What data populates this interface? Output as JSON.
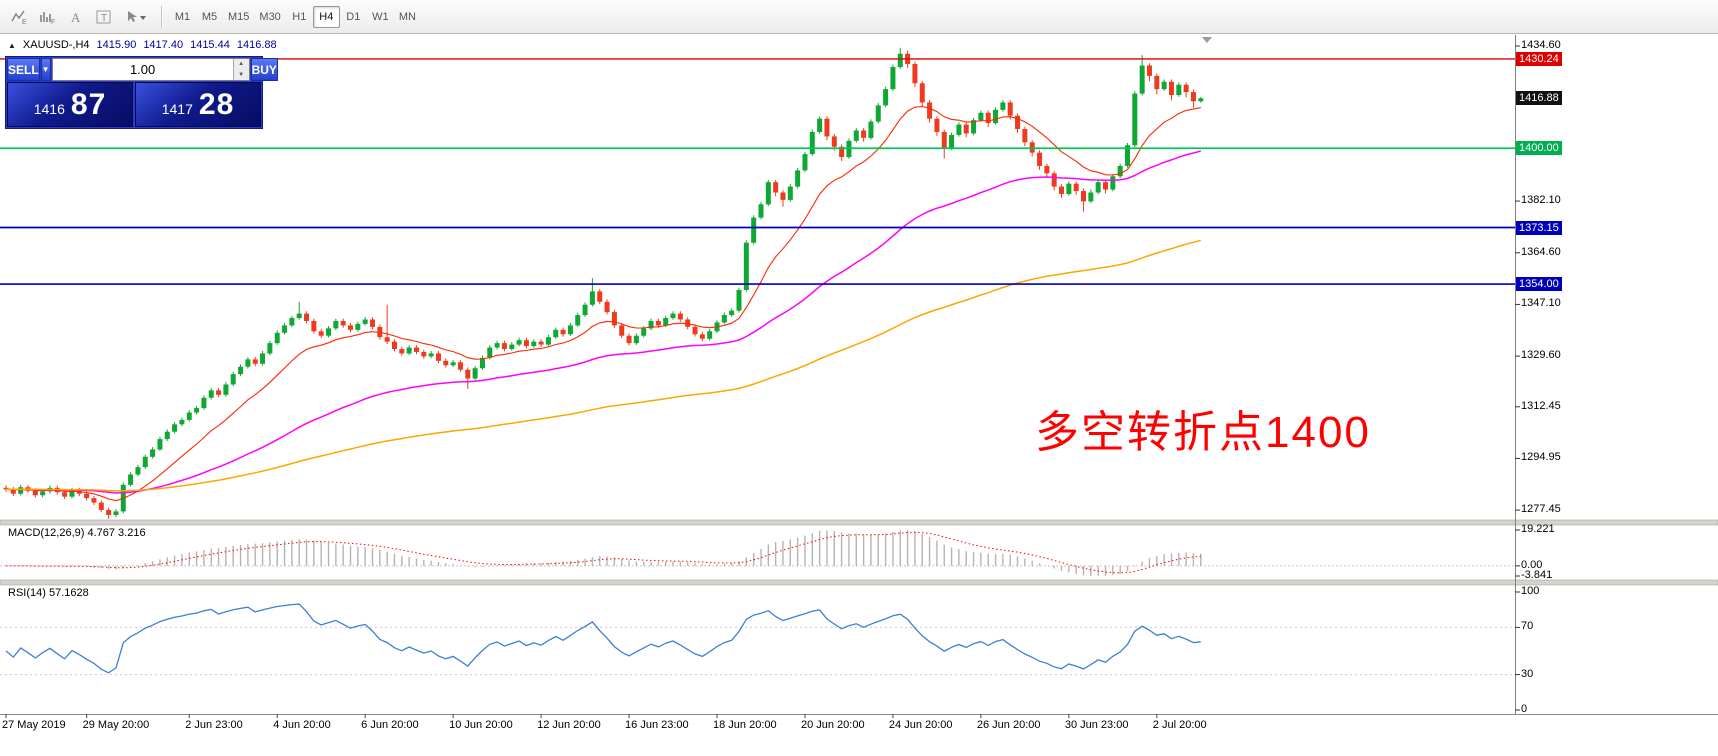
{
  "toolbar": {
    "timeframes": [
      "M1",
      "M5",
      "M15",
      "M30",
      "H1",
      "H4",
      "D1",
      "W1",
      "MN"
    ],
    "active_timeframe": "H4"
  },
  "chart_header": {
    "symbol": "XAUUSD-,H4",
    "open": "1415.90",
    "high": "1417.40",
    "low": "1415.44",
    "close": "1416.88"
  },
  "trade_panel": {
    "sell_label": "SELL",
    "buy_label": "BUY",
    "volume": "1.00",
    "sell_price_small": "1416",
    "sell_price_big": "87",
    "buy_price_small": "1417",
    "buy_price_big": "28"
  },
  "annotation": {
    "text": "多空转折点1400",
    "color": "#ff0000"
  },
  "price_axis": {
    "ticks": [
      "1434.60",
      "1382.10",
      "1364.60",
      "1347.10",
      "1329.60",
      "1312.45",
      "1294.95",
      "1277.45"
    ],
    "badges": [
      {
        "value": "1430.24",
        "color": "#dd0000"
      },
      {
        "value": "1416.88",
        "color": "#111111"
      },
      {
        "value": "1400.00",
        "color": "#00b050"
      },
      {
        "value": "1373.15",
        "color": "#0000bb"
      },
      {
        "value": "1354.00",
        "color": "#0000bb"
      }
    ]
  },
  "hlines": [
    {
      "price": 1430.24,
      "color": "#dd0000",
      "width": 1.3
    },
    {
      "price": 1400.0,
      "color": "#00c853",
      "width": 1.7
    },
    {
      "price": 1373.15,
      "color": "#0000bb",
      "width": 1.7
    },
    {
      "price": 1354.0,
      "color": "#0000bb",
      "width": 1.7
    }
  ],
  "macd": {
    "label": "MACD(12,26,9) 4.767 3.216",
    "axis": [
      "19.221",
      "0.00",
      "-3.841"
    ],
    "fast": 12,
    "slow": 26,
    "signal": 9,
    "histogram_color": "#b4b4b4",
    "signal_color": "#ff0000"
  },
  "rsi": {
    "label": "RSI(14) 57.1628",
    "axis": [
      "100",
      "70",
      "30",
      "0"
    ],
    "period": 14,
    "levels": [
      70,
      30
    ],
    "color": "#3d7fd6"
  },
  "time_axis": [
    {
      "label": "27 May 2019",
      "i": 0
    },
    {
      "label": "29 May 20:00",
      "i": 11
    },
    {
      "label": "2 Jun 23:00",
      "i": 25
    },
    {
      "label": "4 Jun 20:00",
      "i": 37
    },
    {
      "label": "6 Jun 20:00",
      "i": 49
    },
    {
      "label": "10 Jun 20:00",
      "i": 61
    },
    {
      "label": "12 Jun 20:00",
      "i": 73
    },
    {
      "label": "16 Jun 23:00",
      "i": 85
    },
    {
      "label": "18 Jun 20:00",
      "i": 97
    },
    {
      "label": "20 Jun 20:00",
      "i": 109
    },
    {
      "label": "24 Jun 20:00",
      "i": 121
    },
    {
      "label": "26 Jun 20:00",
      "i": 133
    },
    {
      "label": "30 Jun 23:00",
      "i": 145
    },
    {
      "label": "2 Jul 20:00",
      "i": 157
    }
  ],
  "chart_data": {
    "type": "candlestick",
    "symbol": "XAUUSD",
    "timeframe": "H4",
    "visible_price_range": [
      1277.45,
      1434.6
    ],
    "colors": {
      "up": "#0fa834",
      "down": "#ee3b20"
    },
    "overlays": [
      {
        "name": "ma-fast",
        "kind": "ema",
        "period": 13,
        "color": "#ff2600",
        "width": 1.1
      },
      {
        "name": "ma-mid",
        "kind": "ema",
        "period": 55,
        "color": "#ff00ff",
        "width": 1.5
      },
      {
        "name": "ma-slow",
        "kind": "ema",
        "period": 144,
        "color": "#ffa500",
        "width": 1.5
      }
    ],
    "candles": [
      [
        1285.0,
        1285.9,
        1283.6,
        1284.5
      ],
      [
        1284.5,
        1285.3,
        1282.2,
        1283.0
      ],
      [
        1283.0,
        1286.0,
        1282.4,
        1285.2
      ],
      [
        1285.2,
        1286.0,
        1283.2,
        1284.0
      ],
      [
        1284.0,
        1284.8,
        1281.7,
        1282.5
      ],
      [
        1282.5,
        1284.6,
        1281.8,
        1283.8
      ],
      [
        1283.8,
        1285.8,
        1283.0,
        1285.0
      ],
      [
        1285.0,
        1285.8,
        1282.7,
        1283.5
      ],
      [
        1283.5,
        1284.3,
        1281.2,
        1282.0
      ],
      [
        1282.0,
        1285.0,
        1281.4,
        1284.2
      ],
      [
        1284.2,
        1285.0,
        1282.2,
        1283.0
      ],
      [
        1283.0,
        1283.8,
        1280.7,
        1281.5
      ],
      [
        1281.5,
        1282.3,
        1279.2,
        1280.0
      ],
      [
        1280.0,
        1280.8,
        1276.7,
        1277.5
      ],
      [
        1277.5,
        1278.3,
        1274.5,
        1275.8
      ],
      [
        1275.8,
        1277.8,
        1275.0,
        1277.0
      ],
      [
        1277.0,
        1286.8,
        1276.4,
        1286.0
      ],
      [
        1286.0,
        1290.3,
        1285.4,
        1289.5
      ],
      [
        1289.5,
        1292.8,
        1288.9,
        1292.0
      ],
      [
        1292.0,
        1296.3,
        1291.4,
        1295.5
      ],
      [
        1295.5,
        1298.8,
        1294.9,
        1298.0
      ],
      [
        1298.0,
        1302.3,
        1297.4,
        1301.5
      ],
      [
        1301.5,
        1304.8,
        1300.9,
        1304.0
      ],
      [
        1304.0,
        1307.3,
        1303.4,
        1306.5
      ],
      [
        1306.5,
        1308.8,
        1305.9,
        1308.0
      ],
      [
        1308.0,
        1311.3,
        1307.4,
        1310.5
      ],
      [
        1310.5,
        1312.8,
        1309.9,
        1312.0
      ],
      [
        1312.0,
        1316.3,
        1311.4,
        1315.5
      ],
      [
        1315.5,
        1318.8,
        1314.9,
        1318.0
      ],
      [
        1318.0,
        1318.8,
        1315.7,
        1316.5
      ],
      [
        1316.5,
        1320.8,
        1315.9,
        1320.0
      ],
      [
        1320.0,
        1324.3,
        1319.4,
        1323.5
      ],
      [
        1323.5,
        1326.8,
        1322.9,
        1326.0
      ],
      [
        1326.0,
        1329.3,
        1325.4,
        1328.5
      ],
      [
        1328.5,
        1329.3,
        1326.2,
        1327.0
      ],
      [
        1327.0,
        1331.3,
        1326.4,
        1330.5
      ],
      [
        1330.5,
        1334.8,
        1329.9,
        1334.0
      ],
      [
        1334.0,
        1338.3,
        1333.4,
        1337.5
      ],
      [
        1337.5,
        1340.8,
        1336.9,
        1340.0
      ],
      [
        1340.0,
        1343.3,
        1339.4,
        1342.5
      ],
      [
        1342.5,
        1348.0,
        1341.9,
        1344.0
      ],
      [
        1344.0,
        1344.8,
        1340.7,
        1341.5
      ],
      [
        1341.5,
        1342.3,
        1337.2,
        1338.0
      ],
      [
        1338.0,
        1338.8,
        1335.7,
        1336.5
      ],
      [
        1336.5,
        1339.8,
        1335.9,
        1339.0
      ],
      [
        1339.0,
        1342.3,
        1338.4,
        1341.5
      ],
      [
        1341.5,
        1342.3,
        1339.2,
        1340.0
      ],
      [
        1340.0,
        1340.8,
        1337.7,
        1338.5
      ],
      [
        1338.5,
        1341.3,
        1337.9,
        1340.5
      ],
      [
        1340.5,
        1342.8,
        1339.9,
        1342.0
      ],
      [
        1342.0,
        1342.8,
        1338.7,
        1339.5
      ],
      [
        1339.5,
        1340.3,
        1335.2,
        1336.0
      ],
      [
        1336.0,
        1347.0,
        1333.7,
        1334.5
      ],
      [
        1334.5,
        1335.3,
        1331.2,
        1332.0
      ],
      [
        1332.0,
        1332.8,
        1329.7,
        1330.5
      ],
      [
        1330.5,
        1333.3,
        1329.9,
        1332.5
      ],
      [
        1332.5,
        1333.3,
        1330.2,
        1331.0
      ],
      [
        1331.0,
        1331.8,
        1328.7,
        1329.5
      ],
      [
        1329.5,
        1331.3,
        1328.9,
        1330.5
      ],
      [
        1330.5,
        1331.3,
        1327.2,
        1328.0
      ],
      [
        1328.0,
        1328.8,
        1325.7,
        1326.5
      ],
      [
        1326.5,
        1328.3,
        1325.9,
        1327.5
      ],
      [
        1327.5,
        1328.3,
        1324.2,
        1325.0
      ],
      [
        1325.0,
        1325.8,
        1318.5,
        1322.0
      ],
      [
        1322.0,
        1326.3,
        1321.4,
        1325.5
      ],
      [
        1325.5,
        1329.8,
        1324.9,
        1329.0
      ],
      [
        1329.0,
        1333.3,
        1328.4,
        1332.5
      ],
      [
        1332.5,
        1334.8,
        1331.9,
        1334.0
      ],
      [
        1334.0,
        1334.8,
        1331.2,
        1332.0
      ],
      [
        1332.0,
        1334.3,
        1331.4,
        1333.5
      ],
      [
        1333.5,
        1335.8,
        1332.9,
        1335.0
      ],
      [
        1335.0,
        1335.8,
        1332.2,
        1333.0
      ],
      [
        1333.0,
        1335.3,
        1332.4,
        1334.5
      ],
      [
        1334.5,
        1335.3,
        1332.7,
        1333.5
      ],
      [
        1333.5,
        1336.8,
        1332.9,
        1336.0
      ],
      [
        1336.0,
        1339.3,
        1335.4,
        1338.5
      ],
      [
        1338.5,
        1339.3,
        1336.2,
        1337.0
      ],
      [
        1337.0,
        1340.8,
        1336.4,
        1340.0
      ],
      [
        1340.0,
        1344.3,
        1339.4,
        1343.5
      ],
      [
        1343.5,
        1347.8,
        1342.9,
        1347.0
      ],
      [
        1347.0,
        1356.0,
        1346.4,
        1351.5
      ],
      [
        1351.5,
        1352.3,
        1347.2,
        1348.0
      ],
      [
        1348.0,
        1348.8,
        1343.7,
        1344.5
      ],
      [
        1344.5,
        1345.3,
        1339.2,
        1340.0
      ],
      [
        1340.0,
        1340.8,
        1335.7,
        1336.5
      ],
      [
        1336.5,
        1337.3,
        1333.2,
        1334.0
      ],
      [
        1334.0,
        1337.3,
        1333.4,
        1336.5
      ],
      [
        1336.5,
        1339.8,
        1335.9,
        1339.0
      ],
      [
        1339.0,
        1342.3,
        1338.4,
        1341.5
      ],
      [
        1341.5,
        1342.3,
        1339.2,
        1340.0
      ],
      [
        1340.0,
        1343.3,
        1339.4,
        1342.5
      ],
      [
        1342.5,
        1344.8,
        1341.9,
        1344.0
      ],
      [
        1344.0,
        1344.8,
        1341.2,
        1342.0
      ],
      [
        1342.0,
        1342.8,
        1338.7,
        1339.5
      ],
      [
        1339.5,
        1340.3,
        1336.2,
        1337.0
      ],
      [
        1337.0,
        1337.8,
        1334.7,
        1335.5
      ],
      [
        1335.5,
        1338.8,
        1334.9,
        1338.0
      ],
      [
        1338.0,
        1341.8,
        1337.4,
        1341.0
      ],
      [
        1341.0,
        1344.3,
        1340.4,
        1343.5
      ],
      [
        1343.5,
        1345.8,
        1342.9,
        1345.0
      ],
      [
        1345.0,
        1352.8,
        1344.4,
        1352.0
      ],
      [
        1352.0,
        1368.8,
        1351.4,
        1368.0
      ],
      [
        1368.0,
        1377.3,
        1367.4,
        1376.5
      ],
      [
        1376.5,
        1381.8,
        1375.9,
        1381.0
      ],
      [
        1381.0,
        1389.3,
        1380.4,
        1388.5
      ],
      [
        1388.5,
        1389.3,
        1383.7,
        1385.0
      ],
      [
        1385.0,
        1385.8,
        1380.2,
        1382.5
      ],
      [
        1382.5,
        1387.8,
        1381.9,
        1387.0
      ],
      [
        1387.0,
        1393.3,
        1386.4,
        1392.5
      ],
      [
        1392.5,
        1398.8,
        1391.9,
        1398.0
      ],
      [
        1398.0,
        1406.3,
        1397.4,
        1405.5
      ],
      [
        1405.5,
        1410.8,
        1404.9,
        1410.0
      ],
      [
        1410.0,
        1410.8,
        1402.7,
        1404.0
      ],
      [
        1404.0,
        1404.8,
        1399.2,
        1400.5
      ],
      [
        1400.5,
        1401.3,
        1395.7,
        1397.0
      ],
      [
        1397.0,
        1403.3,
        1396.4,
        1402.5
      ],
      [
        1402.5,
        1406.8,
        1401.9,
        1406.0
      ],
      [
        1406.0,
        1406.8,
        1402.2,
        1403.5
      ],
      [
        1403.5,
        1409.8,
        1402.9,
        1409.0
      ],
      [
        1409.0,
        1415.3,
        1408.4,
        1414.5
      ],
      [
        1414.5,
        1420.8,
        1413.9,
        1420.0
      ],
      [
        1420.0,
        1428.3,
        1419.4,
        1427.5
      ],
      [
        1427.5,
        1434.0,
        1426.9,
        1432.0
      ],
      [
        1432.0,
        1433.0,
        1427.2,
        1428.5
      ],
      [
        1428.5,
        1429.3,
        1420.7,
        1422.0
      ],
      [
        1422.0,
        1422.8,
        1414.2,
        1415.5
      ],
      [
        1415.5,
        1416.3,
        1408.7,
        1410.0
      ],
      [
        1410.0,
        1410.8,
        1404.2,
        1405.5
      ],
      [
        1405.5,
        1406.3,
        1396.5,
        1400.0
      ],
      [
        1400.0,
        1405.3,
        1399.4,
        1404.5
      ],
      [
        1404.5,
        1408.8,
        1403.9,
        1408.0
      ],
      [
        1408.0,
        1408.8,
        1403.7,
        1405.0
      ],
      [
        1405.0,
        1410.3,
        1404.4,
        1409.5
      ],
      [
        1409.5,
        1412.8,
        1408.9,
        1412.0
      ],
      [
        1412.0,
        1412.8,
        1407.2,
        1408.5
      ],
      [
        1408.5,
        1413.8,
        1407.9,
        1413.0
      ],
      [
        1413.0,
        1416.3,
        1412.4,
        1415.5
      ],
      [
        1415.5,
        1416.3,
        1409.7,
        1411.0
      ],
      [
        1411.0,
        1411.8,
        1405.2,
        1406.5
      ],
      [
        1406.5,
        1407.3,
        1400.7,
        1402.0
      ],
      [
        1402.0,
        1402.8,
        1397.2,
        1398.5
      ],
      [
        1398.5,
        1399.3,
        1392.7,
        1394.0
      ],
      [
        1394.0,
        1394.8,
        1390.2,
        1391.5
      ],
      [
        1391.5,
        1392.3,
        1385.7,
        1387.0
      ],
      [
        1387.0,
        1387.8,
        1383.2,
        1384.5
      ],
      [
        1384.5,
        1388.8,
        1383.9,
        1388.0
      ],
      [
        1388.0,
        1388.8,
        1384.2,
        1385.5
      ],
      [
        1385.5,
        1386.3,
        1378.5,
        1382.0
      ],
      [
        1382.0,
        1386.0,
        1381.4,
        1385.0
      ],
      [
        1385.0,
        1389.3,
        1384.4,
        1388.5
      ],
      [
        1388.5,
        1389.3,
        1384.7,
        1386.0
      ],
      [
        1386.0,
        1391.3,
        1385.4,
        1390.5
      ],
      [
        1390.5,
        1394.8,
        1389.9,
        1394.0
      ],
      [
        1394.0,
        1401.8,
        1393.4,
        1401.0
      ],
      [
        1401.0,
        1419.3,
        1400.4,
        1418.5
      ],
      [
        1418.5,
        1431.5,
        1417.9,
        1428.0
      ],
      [
        1428.0,
        1428.8,
        1422.7,
        1424.5
      ],
      [
        1424.5,
        1425.3,
        1418.2,
        1420.0
      ],
      [
        1420.0,
        1423.3,
        1419.4,
        1422.5
      ],
      [
        1422.5,
        1423.3,
        1416.2,
        1418.0
      ],
      [
        1418.0,
        1422.3,
        1417.4,
        1421.5
      ],
      [
        1421.5,
        1422.3,
        1417.2,
        1419.0
      ],
      [
        1419.0,
        1419.8,
        1413.7,
        1415.9
      ],
      [
        1415.9,
        1417.4,
        1415.4,
        1416.9
      ]
    ]
  }
}
